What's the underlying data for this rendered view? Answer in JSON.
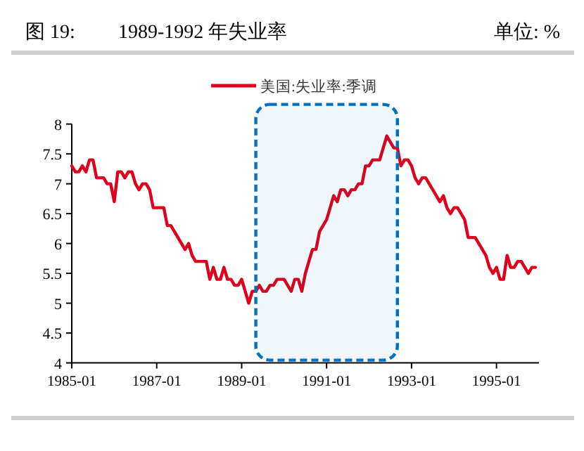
{
  "chart_data": {
    "type": "line",
    "title": "图 19:",
    "subtitle": "1989-1992 年失业率",
    "ylabel": "单位: %",
    "x": [
      "1985-01",
      "1985-02",
      "1985-03",
      "1985-04",
      "1985-05",
      "1985-06",
      "1985-07",
      "1985-08",
      "1985-09",
      "1985-10",
      "1985-11",
      "1985-12",
      "1986-01",
      "1986-02",
      "1986-03",
      "1986-04",
      "1986-05",
      "1986-06",
      "1986-07",
      "1986-08",
      "1986-09",
      "1986-10",
      "1986-11",
      "1986-12",
      "1987-01",
      "1987-02",
      "1987-03",
      "1987-04",
      "1987-05",
      "1987-06",
      "1987-07",
      "1987-08",
      "1987-09",
      "1987-10",
      "1987-11",
      "1987-12",
      "1988-01",
      "1988-02",
      "1988-03",
      "1988-04",
      "1988-05",
      "1988-06",
      "1988-07",
      "1988-08",
      "1988-09",
      "1988-10",
      "1988-11",
      "1988-12",
      "1989-01",
      "1989-02",
      "1989-03",
      "1989-04",
      "1989-05",
      "1989-06",
      "1989-07",
      "1989-08",
      "1989-09",
      "1989-10",
      "1989-11",
      "1989-12",
      "1990-01",
      "1990-02",
      "1990-03",
      "1990-04",
      "1990-05",
      "1990-06",
      "1990-07",
      "1990-08",
      "1990-09",
      "1990-10",
      "1990-11",
      "1990-12",
      "1991-01",
      "1991-02",
      "1991-03",
      "1991-04",
      "1991-05",
      "1991-06",
      "1991-07",
      "1991-08",
      "1991-09",
      "1991-10",
      "1991-11",
      "1991-12",
      "1992-01",
      "1992-02",
      "1992-03",
      "1992-04",
      "1992-05",
      "1992-06",
      "1992-07",
      "1992-08",
      "1992-09",
      "1992-10",
      "1992-11",
      "1992-12",
      "1993-01",
      "1993-02",
      "1993-03",
      "1993-04",
      "1993-05",
      "1993-06",
      "1993-07",
      "1993-08",
      "1993-09",
      "1993-10",
      "1993-11",
      "1993-12",
      "1994-01",
      "1994-02",
      "1994-03",
      "1994-04",
      "1994-05",
      "1994-06",
      "1994-07",
      "1994-08",
      "1994-09",
      "1994-10",
      "1994-11",
      "1994-12",
      "1995-01",
      "1995-02",
      "1995-03",
      "1995-04",
      "1995-05",
      "1995-06",
      "1995-07",
      "1995-08",
      "1995-09",
      "1995-10",
      "1995-11",
      "1995-12"
    ],
    "series": [
      {
        "name": "美国:失业率:季调",
        "color": "#e0001b",
        "values": [
          7.3,
          7.2,
          7.2,
          7.3,
          7.2,
          7.4,
          7.4,
          7.1,
          7.1,
          7.1,
          7.0,
          7.0,
          6.7,
          7.2,
          7.2,
          7.1,
          7.2,
          7.2,
          7.0,
          6.9,
          7.0,
          7.0,
          6.9,
          6.6,
          6.6,
          6.6,
          6.6,
          6.3,
          6.3,
          6.2,
          6.1,
          6.0,
          5.9,
          6.0,
          5.8,
          5.7,
          5.7,
          5.7,
          5.7,
          5.4,
          5.6,
          5.4,
          5.4,
          5.6,
          5.4,
          5.4,
          5.3,
          5.3,
          5.4,
          5.2,
          5.0,
          5.2,
          5.2,
          5.3,
          5.2,
          5.2,
          5.3,
          5.3,
          5.4,
          5.4,
          5.4,
          5.3,
          5.2,
          5.4,
          5.4,
          5.2,
          5.5,
          5.7,
          5.9,
          5.9,
          6.2,
          6.3,
          6.4,
          6.6,
          6.8,
          6.7,
          6.9,
          6.9,
          6.8,
          6.9,
          6.9,
          7.0,
          7.0,
          7.3,
          7.3,
          7.4,
          7.4,
          7.4,
          7.6,
          7.8,
          7.7,
          7.6,
          7.6,
          7.3,
          7.4,
          7.4,
          7.3,
          7.1,
          7.0,
          7.1,
          7.1,
          7.0,
          6.9,
          6.8,
          6.7,
          6.8,
          6.6,
          6.5,
          6.6,
          6.6,
          6.5,
          6.4,
          6.1,
          6.1,
          6.1,
          6.0,
          5.9,
          5.8,
          5.6,
          5.5,
          5.6,
          5.4,
          5.4,
          5.8,
          5.6,
          5.6,
          5.7,
          5.7,
          5.6,
          5.5,
          5.6,
          5.6
        ]
      }
    ],
    "xlim": [
      "1985-01",
      "1996-01"
    ],
    "xticks": [
      "1985-01",
      "1987-01",
      "1989-01",
      "1991-01",
      "1993-01",
      "1995-01"
    ],
    "ylim": [
      4,
      8
    ],
    "yticks": [
      4,
      4.5,
      5,
      5.5,
      6,
      6.5,
      7,
      7.5,
      8
    ],
    "bands": [
      {
        "axis": "x",
        "from": "1989-05",
        "to": "1992-09",
        "color": "#0070c0"
      }
    ],
    "legend": "top",
    "grid": false,
    "marker": "none",
    "line_style": "solid"
  }
}
